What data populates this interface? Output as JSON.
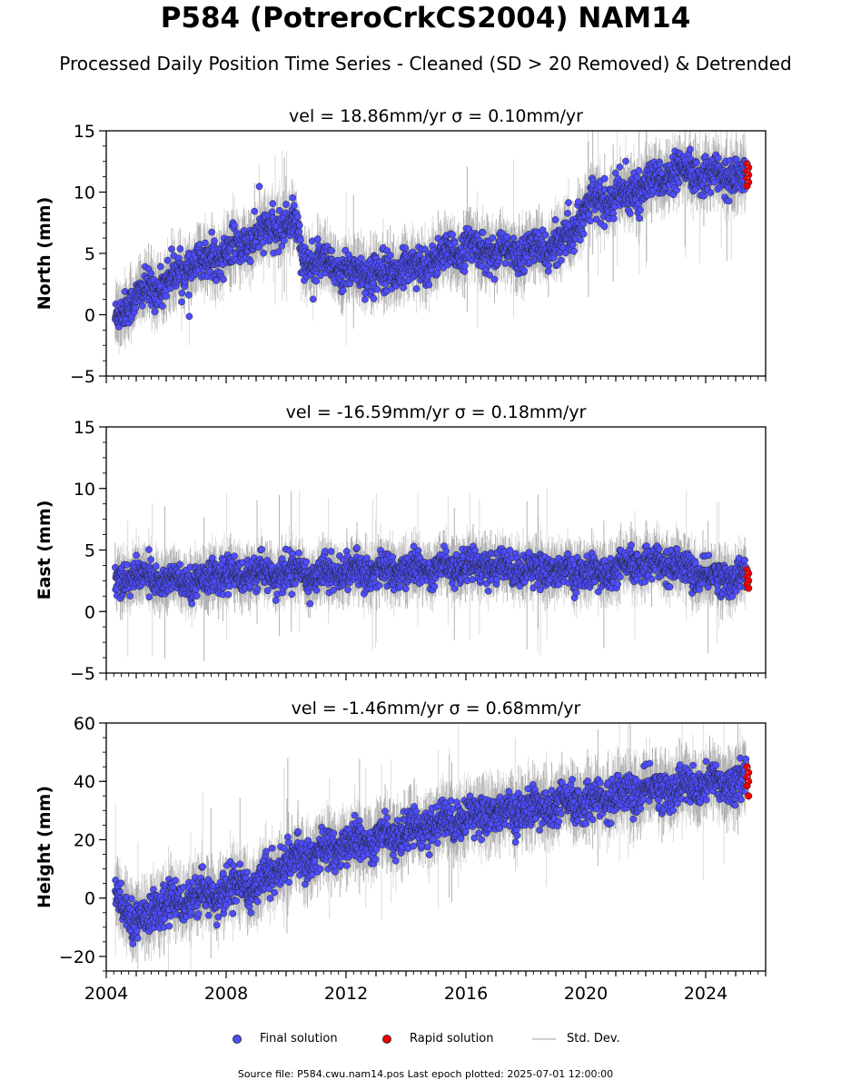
{
  "page": {
    "title": "P584 (PotreroCrkCS2004) NAM14",
    "subtitle": "Processed Daily Position Time Series - Cleaned (SD > 20 Removed) & Detrended",
    "footer": "Source file: P584.cwu.nam14.pos  Last epoch plotted: 2025-07-01 12:00:00"
  },
  "legend": {
    "final": "Final solution",
    "rapid": "Rapid solution",
    "stddev": "Std. Dev."
  },
  "colors": {
    "final": "#4d4dff",
    "rapid": "#ee0000",
    "stddev": "#c8c8c8",
    "edge": "#222222"
  },
  "chart_data": [
    {
      "type": "scatter",
      "panel": "north",
      "title": "vel = 18.86mm/yr   σ = 0.10mm/yr",
      "ylabel": "North (mm)",
      "xlim": [
        2004.0,
        2026.0
      ],
      "ylim": [
        -5,
        15
      ],
      "yticks": [
        -5,
        0,
        5,
        10,
        15
      ],
      "xticks": [
        2004,
        2008,
        2012,
        2016,
        2020,
        2024
      ],
      "trend": [
        [
          2004.3,
          -0.5
        ],
        [
          2004.7,
          1.0
        ],
        [
          2005.5,
          2.0
        ],
        [
          2006.5,
          3.5
        ],
        [
          2008.0,
          5.0
        ],
        [
          2009.5,
          7.0
        ],
        [
          2010.3,
          7.5
        ],
        [
          2010.6,
          4.5
        ],
        [
          2012.0,
          3.5
        ],
        [
          2013.5,
          3.5
        ],
        [
          2015.0,
          4.5
        ],
        [
          2016.0,
          5.5
        ],
        [
          2017.5,
          5.0
        ],
        [
          2019.0,
          5.5
        ],
        [
          2019.6,
          7.0
        ],
        [
          2020.0,
          9.0
        ],
        [
          2021.0,
          9.5
        ],
        [
          2022.0,
          10.5
        ],
        [
          2022.8,
          11.5
        ],
        [
          2024.0,
          11.5
        ],
        [
          2025.4,
          11.2
        ]
      ],
      "noise_sd": 1.0,
      "rapid_values": [
        12.3,
        12.0,
        11.7,
        11.4,
        11.1,
        10.8,
        10.5
      ]
    },
    {
      "type": "scatter",
      "panel": "east",
      "title": "vel = -16.59mm/yr   σ = 0.18mm/yr",
      "ylabel": "East (mm)",
      "xlim": [
        2004.0,
        2026.0
      ],
      "ylim": [
        -5,
        15
      ],
      "yticks": [
        -5,
        0,
        5,
        10,
        15
      ],
      "xticks": [
        2004,
        2008,
        2012,
        2016,
        2020,
        2024
      ],
      "trend": [
        [
          2004.3,
          2.5
        ],
        [
          2005.0,
          3.0
        ],
        [
          2006.5,
          2.3
        ],
        [
          2008.0,
          3.0
        ],
        [
          2010.0,
          3.0
        ],
        [
          2012.0,
          3.2
        ],
        [
          2014.0,
          3.3
        ],
        [
          2016.0,
          3.8
        ],
        [
          2018.0,
          3.5
        ],
        [
          2019.5,
          3.2
        ],
        [
          2020.5,
          3.0
        ],
        [
          2022.0,
          4.0
        ],
        [
          2023.0,
          3.8
        ],
        [
          2024.0,
          2.8
        ],
        [
          2025.4,
          2.8
        ]
      ],
      "noise_sd": 0.9,
      "rapid_values": [
        3.4,
        3.1,
        2.8,
        2.5,
        2.2,
        1.9
      ]
    },
    {
      "type": "scatter",
      "panel": "height",
      "title": "vel = -1.46mm/yr   σ = 0.68mm/yr",
      "ylabel": "Height (mm)",
      "xlim": [
        2004.0,
        2026.0
      ],
      "ylim": [
        -25,
        60
      ],
      "yticks": [
        -20,
        0,
        20,
        40,
        60
      ],
      "xticks": [
        2004,
        2008,
        2012,
        2016,
        2020,
        2024
      ],
      "trend": [
        [
          2004.3,
          0
        ],
        [
          2005.0,
          -8
        ],
        [
          2006.0,
          -2
        ],
        [
          2008.0,
          2
        ],
        [
          2009.0,
          5
        ],
        [
          2010.0,
          12
        ],
        [
          2012.0,
          18
        ],
        [
          2014.0,
          23
        ],
        [
          2016.0,
          28
        ],
        [
          2018.0,
          30
        ],
        [
          2020.0,
          33
        ],
        [
          2022.0,
          37
        ],
        [
          2023.5,
          38
        ],
        [
          2025.4,
          41
        ]
      ],
      "noise_sd": 4.5,
      "rapid_values": [
        45,
        43,
        41.5,
        40,
        38.5,
        35
      ]
    }
  ]
}
